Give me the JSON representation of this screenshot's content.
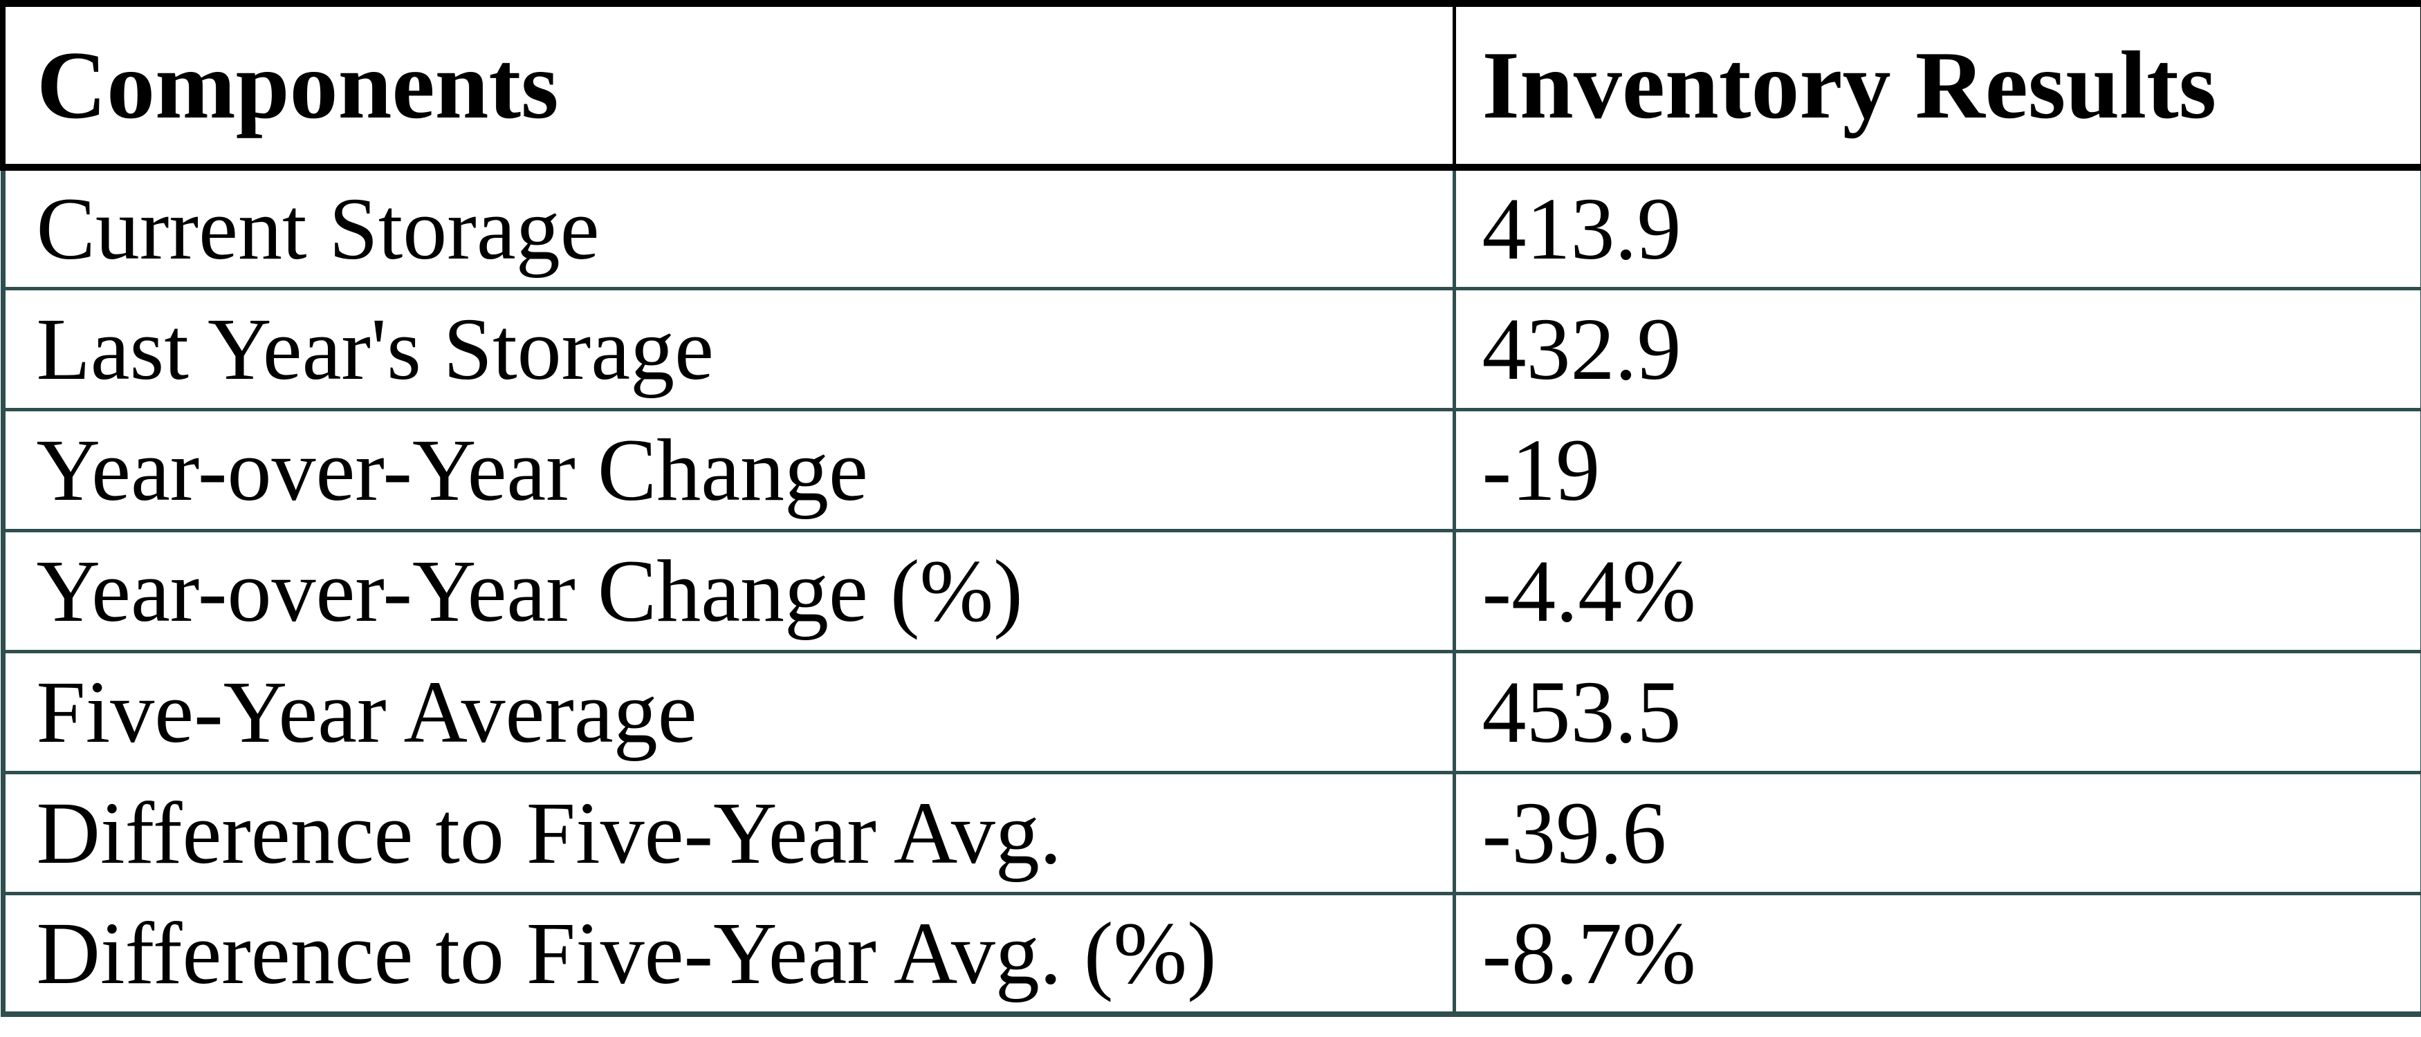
{
  "chart_data": {
    "type": "table",
    "columns": [
      "Components",
      "Inventory Results"
    ],
    "rows": [
      [
        "Current Storage",
        "413.9"
      ],
      [
        "Last Year's Storage",
        "432.9"
      ],
      [
        "Year-over-Year Change",
        "-19"
      ],
      [
        "Year-over-Year Change (%)",
        "-4.4%"
      ],
      [
        "Five-Year Average",
        "453.5"
      ],
      [
        "Difference to Five-Year Avg.",
        "-39.6"
      ],
      [
        "Difference to Five-Year Avg. (%)",
        "-8.7%"
      ]
    ]
  },
  "colors": {
    "header_border": "#000000",
    "body_border": "#2F4F4F",
    "text": "#000000",
    "background": "#FFFFFF"
  }
}
